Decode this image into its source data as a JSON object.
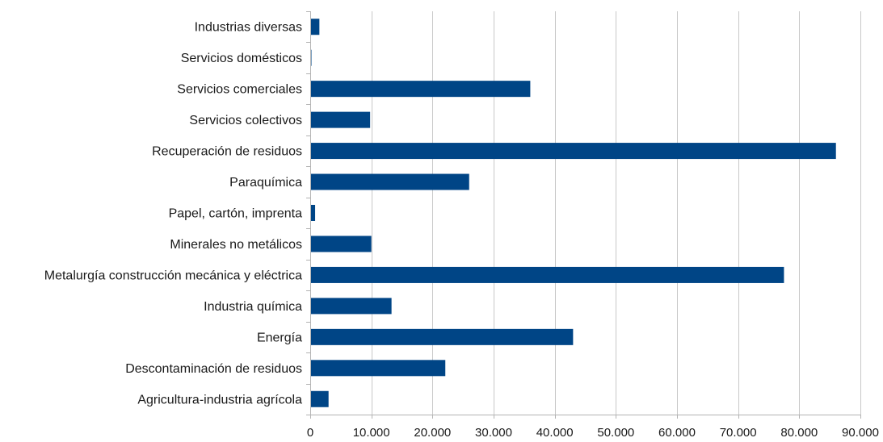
{
  "chart_data": {
    "type": "bar",
    "orientation": "horizontal",
    "categories": [
      "Industrias diversas",
      "Servicios domésticos",
      "Servicios comerciales",
      "Servicios colectivos",
      "Recuperación de residuos",
      "Paraquímica",
      "Papel, cartón, imprenta",
      "Minerales no metálicos",
      "Metalurgía construcción mecánica y eléctrica",
      "Industria química",
      "Energía",
      "Descontaminación de residuos",
      "Agricultura-industria agrícola"
    ],
    "values": [
      1500,
      200,
      36000,
      9800,
      86000,
      26000,
      800,
      10000,
      77500,
      13300,
      43000,
      22100,
      3000
    ],
    "xlim": [
      0,
      90000
    ],
    "xticks": [
      0,
      10000,
      20000,
      30000,
      40000,
      50000,
      60000,
      70000,
      80000,
      90000
    ],
    "xtick_labels": [
      "0",
      "10.000",
      "20.000",
      "30.000",
      "40.000",
      "50.000",
      "60.000",
      "70.000",
      "80.000",
      "90.000"
    ],
    "title": "",
    "xlabel": "",
    "ylabel": "",
    "grid": "vertical",
    "legend": "none",
    "bar_color": "#004586",
    "grid_color": "#c8c8c8",
    "axis_color": "#b3b3b3"
  }
}
